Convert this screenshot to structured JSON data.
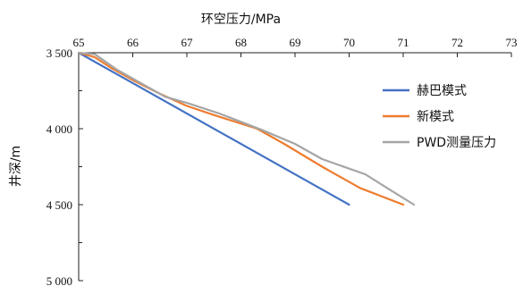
{
  "chart_data": {
    "type": "line",
    "xlabel": "环空压力/MPa",
    "ylabel": "井深/m",
    "xlim": [
      65,
      73
    ],
    "ylim": [
      3500,
      5000
    ],
    "y_inverted": true,
    "x_axis_position": "top",
    "x_ticks": [
      65,
      66,
      67,
      68,
      69,
      70,
      71,
      72,
      73
    ],
    "y_ticks": [
      3500,
      4000,
      4500,
      5000
    ],
    "y_tick_labels": [
      "3 500",
      "4 000",
      "4 500",
      "5 000"
    ],
    "grid": false,
    "legend_position": "right",
    "series": [
      {
        "name": "赫巴模式",
        "color": "#4472C4",
        "points": [
          [
            65.0,
            3500
          ],
          [
            70.0,
            4500
          ]
        ]
      },
      {
        "name": "新模式",
        "color": "#ED7D31",
        "points": [
          [
            65.0,
            3500
          ],
          [
            65.3,
            3530
          ],
          [
            65.6,
            3600
          ],
          [
            66.0,
            3680
          ],
          [
            66.5,
            3770
          ],
          [
            67.0,
            3850
          ],
          [
            67.5,
            3910
          ],
          [
            68.3,
            4000
          ],
          [
            68.8,
            4100
          ],
          [
            69.5,
            4250
          ],
          [
            70.2,
            4390
          ],
          [
            71.0,
            4500
          ]
        ]
      },
      {
        "name": "PWD测量压力",
        "color": "#A5A5A5",
        "points": [
          [
            65.0,
            3500
          ],
          [
            65.3,
            3510
          ],
          [
            65.7,
            3610
          ],
          [
            66.1,
            3690
          ],
          [
            66.6,
            3790
          ],
          [
            67.0,
            3830
          ],
          [
            67.6,
            3900
          ],
          [
            68.4,
            4010
          ],
          [
            69.0,
            4100
          ],
          [
            69.5,
            4200
          ],
          [
            70.3,
            4300
          ],
          [
            70.7,
            4390
          ],
          [
            71.2,
            4500
          ]
        ]
      }
    ]
  }
}
